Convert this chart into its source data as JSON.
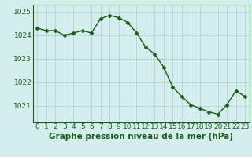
{
  "x": [
    0,
    1,
    2,
    3,
    4,
    5,
    6,
    7,
    8,
    9,
    10,
    11,
    12,
    13,
    14,
    15,
    16,
    17,
    18,
    19,
    20,
    21,
    22,
    23
  ],
  "y": [
    1024.3,
    1024.2,
    1024.2,
    1024.0,
    1024.1,
    1024.2,
    1024.1,
    1024.7,
    1024.85,
    1024.75,
    1024.55,
    1024.1,
    1023.5,
    1023.2,
    1022.65,
    1021.8,
    1021.4,
    1021.05,
    1020.9,
    1020.75,
    1020.65,
    1021.05,
    1021.65,
    1021.4
  ],
  "line_color": "#1a5e1a",
  "marker": "D",
  "marker_size": 2.5,
  "bg_color": "#d4eeed",
  "grid_color": "#b8d4d0",
  "xlabel": "Graphe pression niveau de la mer (hPa)",
  "xlabel_fontsize": 7.5,
  "tick_fontsize": 6.5,
  "ylim": [
    1020.3,
    1025.3
  ],
  "yticks": [
    1021,
    1022,
    1023,
    1024,
    1025
  ],
  "xticks": [
    0,
    1,
    2,
    3,
    4,
    5,
    6,
    7,
    8,
    9,
    10,
    11,
    12,
    13,
    14,
    15,
    16,
    17,
    18,
    19,
    20,
    21,
    22,
    23
  ]
}
